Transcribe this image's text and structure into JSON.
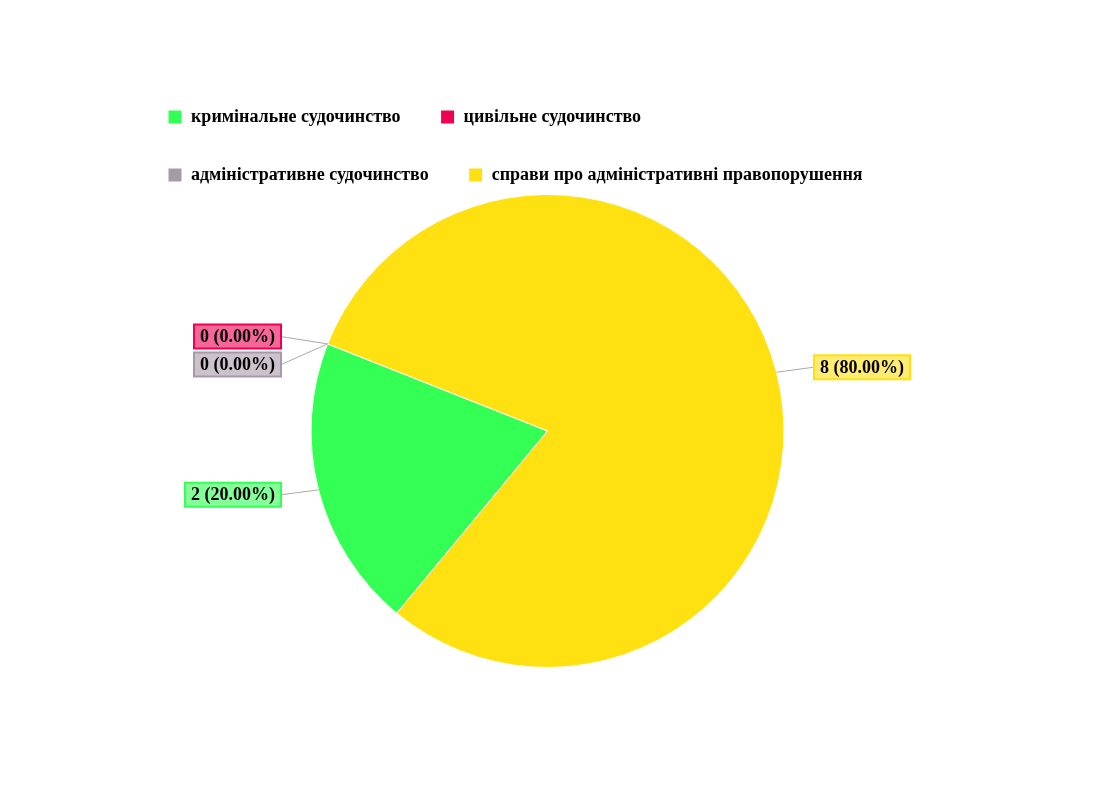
{
  "chart_data": {
    "type": "pie",
    "categories": [
      "кримінальне судочинство",
      "цивільне судочинство",
      "адміністративне судочинство",
      "справи про адміністративні правопорушення"
    ],
    "values": [
      2,
      0,
      0,
      8
    ],
    "colors": [
      "#33ff55",
      "#ee0055",
      "#a899a8",
      "#ffe010"
    ],
    "value_labels": [
      "2 (20.00%)",
      "0 (0.00%)",
      "0 (0.00%)",
      "8 (80.00%)"
    ],
    "legend": "top left"
  }
}
